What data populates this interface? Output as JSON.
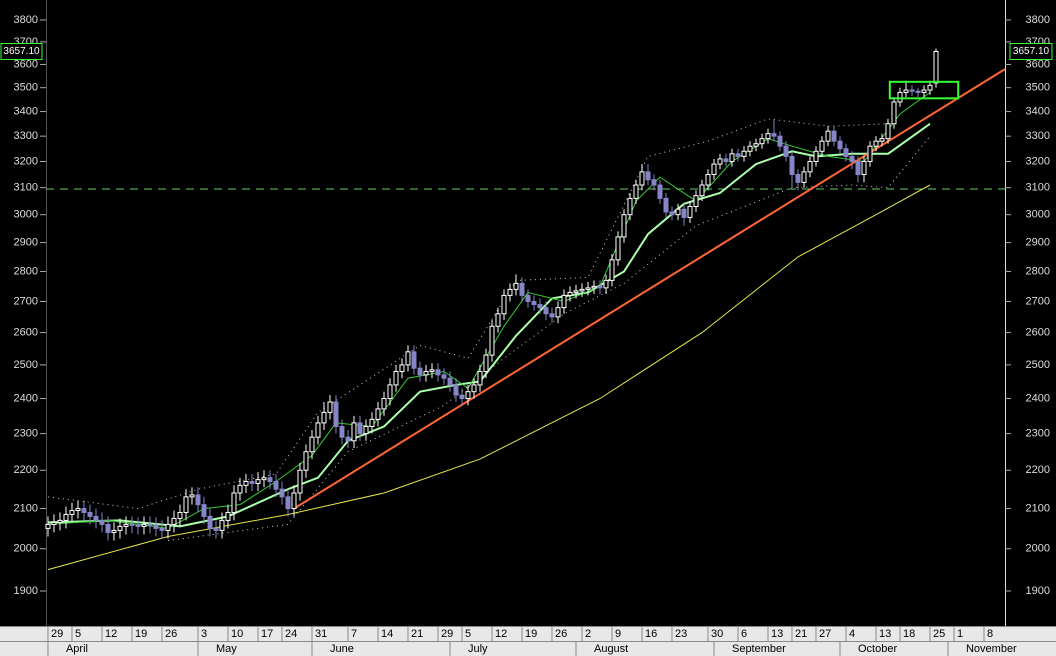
{
  "chart_data": {
    "type": "candlestick",
    "log_scale": true,
    "ylim": [
      1821,
      3893
    ],
    "yticks": [
      1900,
      2000,
      2100,
      2200,
      2300,
      2400,
      2500,
      2600,
      2700,
      2800,
      2900,
      3000,
      3100,
      3200,
      3300,
      3400,
      3500,
      3600,
      3700,
      3800
    ],
    "xlim": [
      -0.33,
      159.5
    ],
    "xticks": [
      {
        "value": 0,
        "label": "29"
      },
      {
        "value": 4,
        "label": "5"
      },
      {
        "value": 9,
        "label": "12"
      },
      {
        "value": 14,
        "label": "19"
      },
      {
        "value": 19,
        "label": "26"
      },
      {
        "value": 25,
        "label": "3"
      },
      {
        "value": 30,
        "label": "10"
      },
      {
        "value": 35,
        "label": "17"
      },
      {
        "value": 39,
        "label": "24"
      },
      {
        "value": 44,
        "label": "31"
      },
      {
        "value": 50,
        "label": "7"
      },
      {
        "value": 55,
        "label": "14"
      },
      {
        "value": 60,
        "label": "21"
      },
      {
        "value": 65,
        "label": "29"
      },
      {
        "value": 69,
        "label": "5"
      },
      {
        "value": 74,
        "label": "12"
      },
      {
        "value": 79,
        "label": "19"
      },
      {
        "value": 84,
        "label": "26"
      },
      {
        "value": 89,
        "label": "2"
      },
      {
        "value": 94,
        "label": "9"
      },
      {
        "value": 99,
        "label": "16"
      },
      {
        "value": 104,
        "label": "23"
      },
      {
        "value": 110,
        "label": "30"
      },
      {
        "value": 115,
        "label": "6"
      },
      {
        "value": 120,
        "label": "13"
      },
      {
        "value": 124,
        "label": "21"
      },
      {
        "value": 128,
        "label": "27"
      },
      {
        "value": 133,
        "label": "4"
      },
      {
        "value": 138,
        "label": "13"
      },
      {
        "value": 142,
        "label": "18"
      },
      {
        "value": 147,
        "label": "25"
      },
      {
        "value": 151,
        "label": "1"
      },
      {
        "value": 156,
        "label": "8"
      }
    ],
    "months": [
      {
        "value": 0,
        "label": "April"
      },
      {
        "value": 25,
        "label": "May"
      },
      {
        "value": 44,
        "label": "June"
      },
      {
        "value": 67,
        "label": "July"
      },
      {
        "value": 88,
        "label": "August"
      },
      {
        "value": 111,
        "label": "September"
      },
      {
        "value": 132,
        "label": "October"
      },
      {
        "value": 150,
        "label": "November"
      }
    ],
    "up_color": "#ffffff",
    "down_color": "#8585c8",
    "open": [
      2050,
      2060,
      2065,
      2070,
      2085,
      2095,
      2100,
      2090,
      2080,
      2070,
      2060,
      2040,
      2045,
      2055,
      2060,
      2058,
      2055,
      2060,
      2058,
      2050,
      2045,
      2060,
      2075,
      2090,
      2130,
      2135,
      2110,
      2080,
      2050,
      2045,
      2070,
      2090,
      2140,
      2160,
      2170,
      2165,
      2175,
      2180,
      2170,
      2150,
      2130,
      2100,
      2140,
      2200,
      2250,
      2290,
      2330,
      2360,
      2390,
      2320,
      2290,
      2280,
      2330,
      2300,
      2320,
      2340,
      2370,
      2400,
      2440,
      2480,
      2500,
      2540,
      2490,
      2470,
      2480,
      2485,
      2470,
      2460,
      2440,
      2410,
      2400,
      2420,
      2440,
      2480,
      2530,
      2620,
      2660,
      2720,
      2740,
      2760,
      2720,
      2700,
      2690,
      2680,
      2660,
      2650,
      2680,
      2720,
      2730,
      2735,
      2740,
      2745,
      2750,
      2745,
      2770,
      2840,
      2920,
      3000,
      3060,
      3110,
      3160,
      3130,
      3110,
      3060,
      3010,
      3000,
      3020,
      2990,
      3030,
      3070,
      3110,
      3150,
      3190,
      3210,
      3200,
      3230,
      3220,
      3240,
      3260,
      3270,
      3290,
      3310,
      3300,
      3260,
      3220,
      3150,
      3120,
      3160,
      3200,
      3240,
      3280,
      3320,
      3280,
      3250,
      3220,
      3200,
      3150,
      3200,
      3260,
      3280,
      3290,
      3350,
      3440,
      3480,
      3490,
      3485,
      3480,
      3490,
      3520
    ],
    "high": [
      2080,
      2085,
      2090,
      2105,
      2115,
      2120,
      2120,
      2110,
      2100,
      2090,
      2080,
      2065,
      2075,
      2080,
      2080,
      2078,
      2080,
      2080,
      2078,
      2070,
      2080,
      2095,
      2110,
      2150,
      2155,
      2155,
      2130,
      2100,
      2070,
      2090,
      2110,
      2160,
      2180,
      2190,
      2190,
      2195,
      2200,
      2200,
      2190,
      2170,
      2150,
      2160,
      2220,
      2270,
      2310,
      2350,
      2390,
      2410,
      2410,
      2340,
      2310,
      2350,
      2350,
      2340,
      2360,
      2390,
      2420,
      2460,
      2500,
      2520,
      2560,
      2560,
      2510,
      2500,
      2505,
      2505,
      2490,
      2480,
      2460,
      2430,
      2440,
      2460,
      2500,
      2550,
      2640,
      2680,
      2740,
      2760,
      2790,
      2780,
      2740,
      2720,
      2710,
      2700,
      2680,
      2700,
      2740,
      2750,
      2755,
      2760,
      2765,
      2770,
      2770,
      2790,
      2860,
      2940,
      3020,
      3080,
      3130,
      3190,
      3190,
      3150,
      3130,
      3080,
      3030,
      3040,
      3040,
      3050,
      3090,
      3130,
      3170,
      3210,
      3230,
      3230,
      3250,
      3250,
      3260,
      3280,
      3290,
      3310,
      3330,
      3370,
      3320,
      3280,
      3240,
      3170,
      3180,
      3220,
      3260,
      3300,
      3340,
      3340,
      3300,
      3270,
      3240,
      3220,
      3220,
      3280,
      3300,
      3310,
      3370,
      3460,
      3500,
      3530,
      3510,
      3500,
      3510,
      3530,
      3670
    ],
    "low": [
      2030,
      2040,
      2045,
      2050,
      2065,
      2075,
      2070,
      2060,
      2050,
      2040,
      2020,
      2020,
      2025,
      2035,
      2038,
      2035,
      2035,
      2038,
      2030,
      2025,
      2025,
      2040,
      2055,
      2070,
      2110,
      2090,
      2060,
      2030,
      2025,
      2025,
      2050,
      2070,
      2120,
      2140,
      2145,
      2145,
      2155,
      2150,
      2130,
      2110,
      2080,
      2080,
      2120,
      2180,
      2230,
      2270,
      2310,
      2340,
      2300,
      2270,
      2260,
      2260,
      2280,
      2280,
      2300,
      2320,
      2350,
      2380,
      2420,
      2460,
      2480,
      2470,
      2450,
      2450,
      2460,
      2450,
      2440,
      2420,
      2390,
      2380,
      2380,
      2400,
      2420,
      2460,
      2510,
      2600,
      2640,
      2700,
      2720,
      2700,
      2680,
      2670,
      2660,
      2640,
      2630,
      2630,
      2660,
      2700,
      2710,
      2715,
      2720,
      2725,
      2725,
      2725,
      2750,
      2820,
      2900,
      2980,
      3040,
      3090,
      3110,
      3090,
      3040,
      2990,
      2980,
      2980,
      2960,
      2970,
      3010,
      3050,
      3090,
      3130,
      3170,
      3180,
      3180,
      3200,
      3200,
      3220,
      3240,
      3250,
      3270,
      3280,
      3240,
      3200,
      3100,
      3090,
      3100,
      3140,
      3180,
      3220,
      3260,
      3260,
      3230,
      3200,
      3170,
      3120,
      3120,
      3180,
      3240,
      3260,
      3270,
      3330,
      3420,
      3460,
      3465,
      3460,
      3460,
      3470,
      3500
    ],
    "close": [
      2060,
      2065,
      2070,
      2085,
      2095,
      2100,
      2090,
      2080,
      2070,
      2060,
      2040,
      2045,
      2055,
      2060,
      2058,
      2055,
      2060,
      2058,
      2050,
      2045,
      2060,
      2075,
      2090,
      2130,
      2135,
      2110,
      2080,
      2050,
      2045,
      2070,
      2090,
      2140,
      2160,
      2170,
      2165,
      2175,
      2180,
      2170,
      2150,
      2130,
      2100,
      2140,
      2200,
      2250,
      2290,
      2330,
      2360,
      2390,
      2320,
      2290,
      2280,
      2330,
      2300,
      2320,
      2340,
      2370,
      2400,
      2440,
      2480,
      2500,
      2540,
      2490,
      2470,
      2480,
      2485,
      2470,
      2460,
      2440,
      2410,
      2400,
      2420,
      2440,
      2480,
      2530,
      2620,
      2660,
      2720,
      2740,
      2760,
      2720,
      2700,
      2690,
      2680,
      2660,
      2650,
      2680,
      2720,
      2730,
      2735,
      2740,
      2745,
      2750,
      2745,
      2770,
      2840,
      2920,
      3000,
      3060,
      3110,
      3160,
      3130,
      3110,
      3060,
      3010,
      3000,
      3020,
      2990,
      3030,
      3070,
      3110,
      3150,
      3190,
      3210,
      3200,
      3230,
      3220,
      3240,
      3260,
      3270,
      3290,
      3310,
      3300,
      3260,
      3220,
      3150,
      3120,
      3160,
      3200,
      3240,
      3280,
      3320,
      3280,
      3250,
      3220,
      3200,
      3150,
      3200,
      3260,
      3280,
      3290,
      3350,
      3440,
      3480,
      3490,
      3485,
      3480,
      3490,
      3510,
      3657.1
    ],
    "last_price": {
      "value": 3657.1,
      "label": "3657.10",
      "color": "#33ff33"
    },
    "lines": [
      {
        "color": "#e6e64c",
        "width": 1,
        "dash": "",
        "x": [
          0,
          20,
          40,
          56,
          72,
          92,
          109,
          125,
          138,
          147
        ],
        "values": [
          1950,
          2030,
          2085,
          2140,
          2230,
          2400,
          2600,
          2850,
          3000,
          3110
        ]
      },
      {
        "color": "#aaffaa",
        "width": 2,
        "dash": "",
        "x": [
          0,
          12,
          22,
          30,
          40,
          45,
          50,
          56,
          62,
          68,
          72,
          78,
          84,
          90,
          96,
          100,
          106,
          112,
          118,
          124,
          128,
          134,
          140,
          147
        ],
        "values": [
          2065,
          2070,
          2055,
          2080,
          2150,
          2180,
          2280,
          2320,
          2420,
          2440,
          2450,
          2590,
          2710,
          2730,
          2800,
          2930,
          3040,
          3080,
          3190,
          3240,
          3220,
          3230,
          3230,
          3350
        ]
      },
      {
        "color": "#33cc33",
        "width": 1,
        "dash": "",
        "x": [
          0,
          10,
          20,
          26,
          32,
          38,
          44,
          48,
          54,
          60,
          66,
          70,
          76,
          80,
          86,
          92,
          98,
          102,
          108,
          114,
          120,
          124,
          130,
          136,
          142,
          147
        ],
        "values": [
          2060,
          2070,
          2050,
          2100,
          2110,
          2170,
          2240,
          2330,
          2320,
          2460,
          2480,
          2430,
          2620,
          2730,
          2700,
          2750,
          3050,
          3140,
          3050,
          3200,
          3290,
          3260,
          3220,
          3200,
          3390,
          3480
        ]
      },
      {
        "color": "#cccccc",
        "width": 1,
        "dash": "1 4",
        "x": [
          0,
          15,
          25,
          38,
          45,
          52,
          62,
          70,
          78,
          90,
          100,
          110,
          120,
          130,
          140
        ],
        "values": [
          2130,
          2100,
          2150,
          2190,
          2360,
          2440,
          2560,
          2520,
          2770,
          2780,
          3220,
          3280,
          3370,
          3340,
          3350
        ]
      },
      {
        "color": "#cccccc",
        "width": 1,
        "dash": "1 4",
        "x": [
          20,
          30,
          40,
          50,
          66,
          76,
          86,
          96,
          108,
          124,
          134,
          140,
          147
        ],
        "values": [
          2020,
          2040,
          2060,
          2250,
          2380,
          2520,
          2660,
          2760,
          2960,
          3100,
          3110,
          3100,
          3300
        ]
      },
      {
        "color": "#ff6633",
        "width": 2,
        "dash": "",
        "x": [
          41,
          159.5
        ],
        "values": [
          2100,
          3580
        ]
      }
    ],
    "hline": {
      "value": 3095,
      "color": "#66cc66"
    },
    "box": {
      "x": [
        140.3,
        151.7
      ],
      "values": [
        3455,
        3525
      ],
      "color": "#33ff33"
    }
  }
}
